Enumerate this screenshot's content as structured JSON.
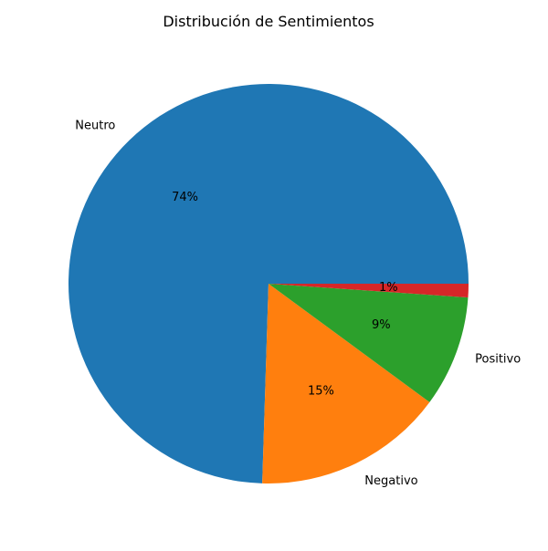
{
  "chart_data": {
    "type": "pie",
    "title": "Distribución de Sentimientos",
    "slices": [
      {
        "label": "Neutro",
        "value": 74.5,
        "pct_label": "74%",
        "color": "#1f77b4"
      },
      {
        "label": "Negativo",
        "value": 15.4,
        "pct_label": "15%",
        "color": "#ff7f0e"
      },
      {
        "label": "Positivo",
        "value": 9.0,
        "pct_label": "9%",
        "color": "#2ca02c"
      },
      {
        "label": "",
        "value": 1.1,
        "pct_label": "1%",
        "color": "#d62728"
      }
    ],
    "start_angle_deg": 0,
    "direction": "counterclockwise",
    "legend": "none"
  }
}
